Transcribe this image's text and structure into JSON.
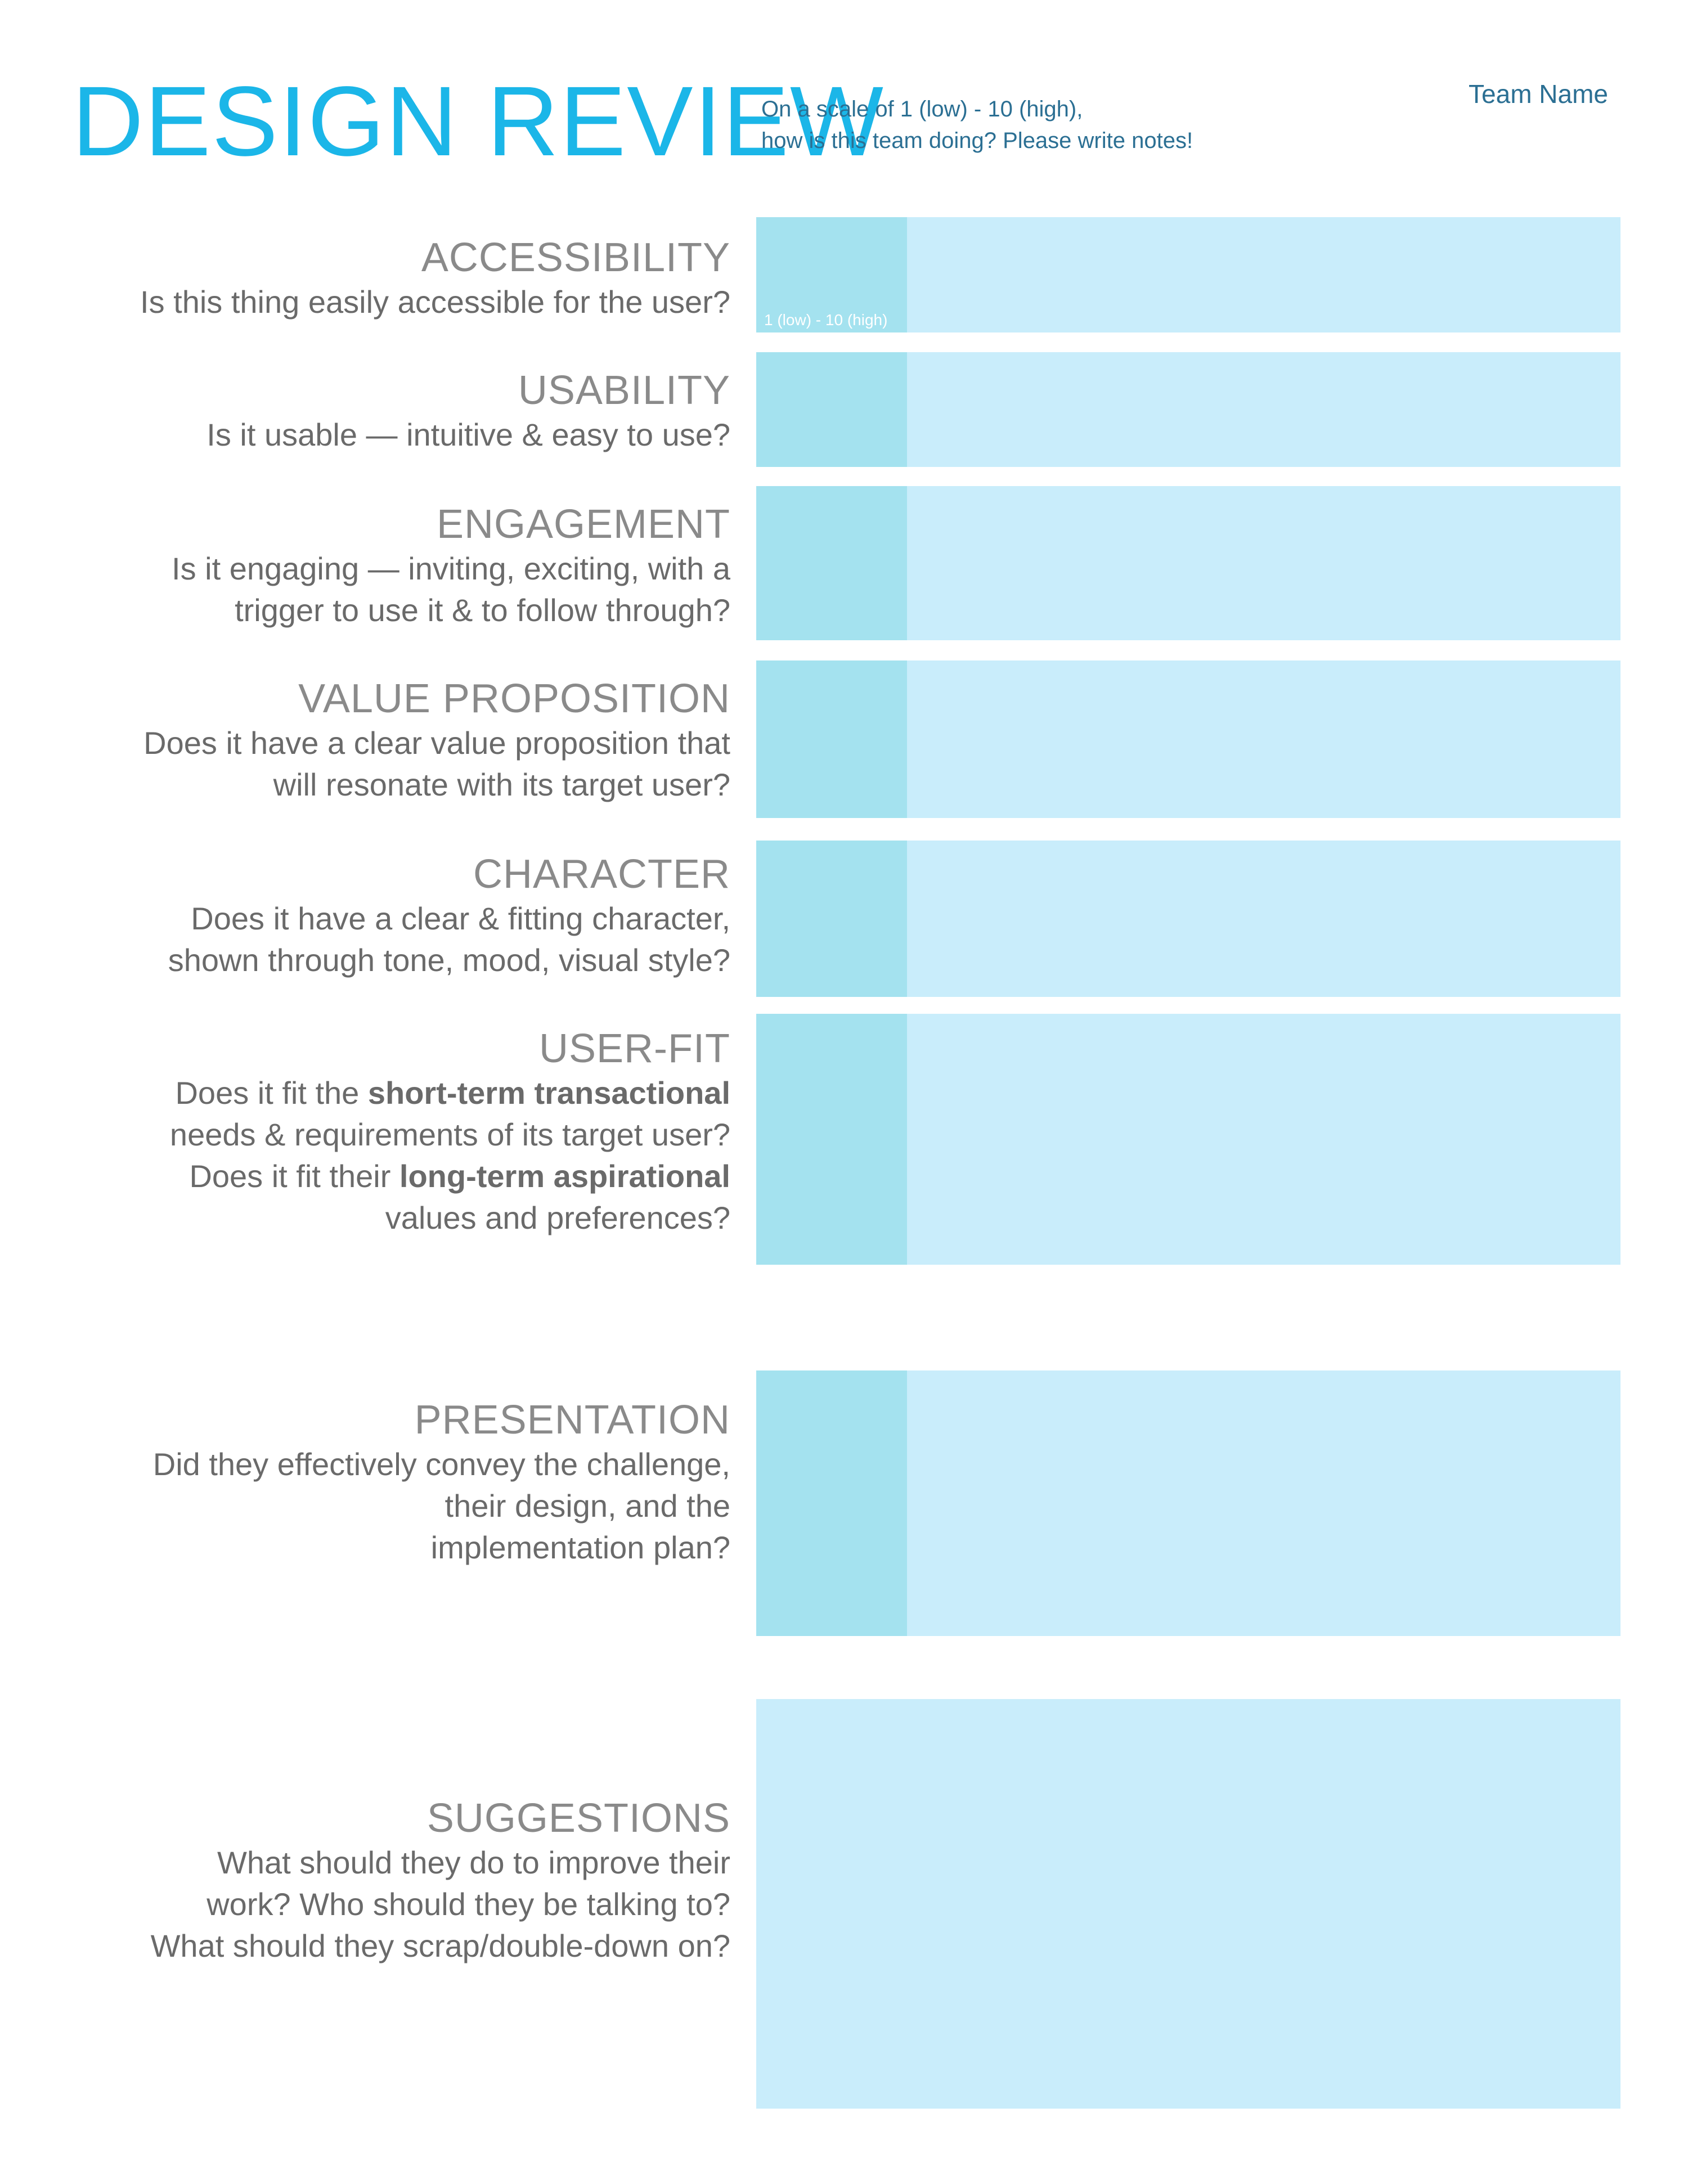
{
  "header": {
    "title": "DESIGN REVIEW",
    "subtitle_line1": "On a scale of 1 (low) - 10 (high),",
    "subtitle_line2": "how is this team doing? Please write notes!",
    "team_name": "Team Name"
  },
  "score_hint": "1 (low) - 10 (high)",
  "sections": {
    "accessibility": {
      "title": "ACCESSIBILITY",
      "question": [
        "Is this thing easily accessible for the user?"
      ]
    },
    "usability": {
      "title": "USABILITY",
      "question": [
        "Is it usable — intuitive & easy to use?"
      ]
    },
    "engagement": {
      "title": "ENGAGEMENT",
      "question": [
        "Is it engaging — inviting, exciting, with a",
        "trigger to use it & to follow through?"
      ]
    },
    "value_proposition": {
      "title": "VALUE PROPOSITION",
      "question": [
        "Does it have a clear value proposition that",
        "will resonate with its target user?"
      ]
    },
    "character": {
      "title": "CHARACTER",
      "question": [
        "Does it have a clear & fitting character,",
        "shown through tone, mood, visual style?"
      ]
    },
    "user_fit": {
      "title": "USER-FIT",
      "line1_prefix": "Does it fit the ",
      "line1_bold": "short-term transactional",
      "line2": "needs & requirements of its target user?",
      "line3_prefix": "Does it fit their ",
      "line3_bold": "long-term aspirational",
      "line4": "values and preferences?"
    },
    "presentation": {
      "title": "PRESENTATION",
      "question": [
        "Did they effectively convey the challenge,",
        "their design, and the",
        "implementation plan?"
      ]
    },
    "suggestions": {
      "title": "SUGGESTIONS",
      "question": [
        "What should they do to improve their",
        "work? Who should they be talking to?",
        "What should they scrap/double-down on?"
      ]
    }
  },
  "colors": {
    "title": "#1bb6e8",
    "subtitle": "#2b6f93",
    "notes_box": "#c9edfb",
    "score_box": "#a4e2ef",
    "label_text": "#6a6a6a"
  }
}
